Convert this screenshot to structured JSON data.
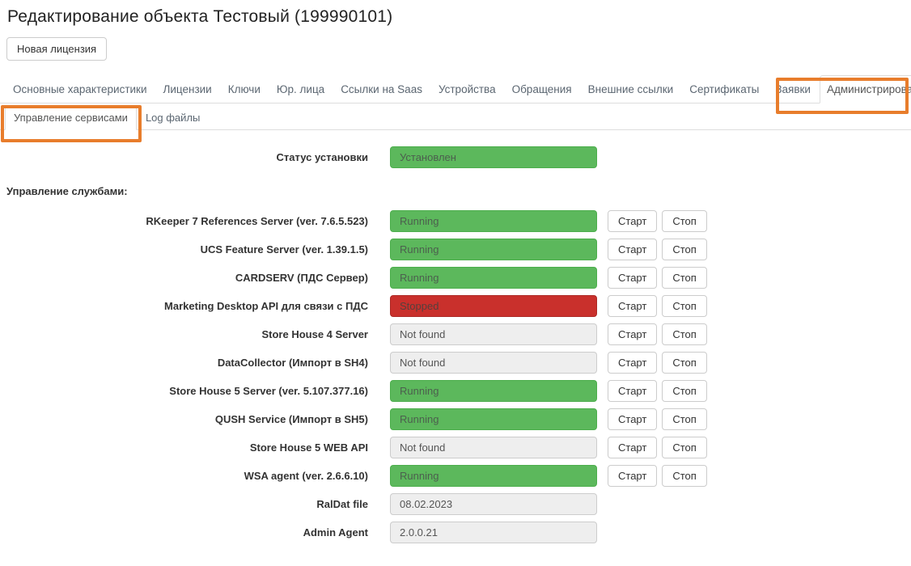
{
  "header": {
    "title": "Редактирование объекта  Тестовый (199990101)",
    "new_license_button": "Новая лицензия"
  },
  "tabs": [
    {
      "label": "Основные характеристики",
      "active": false
    },
    {
      "label": "Лицензии",
      "active": false
    },
    {
      "label": "Ключи",
      "active": false
    },
    {
      "label": "Юр. лица",
      "active": false
    },
    {
      "label": "Ссылки на Saas",
      "active": false
    },
    {
      "label": "Устройства",
      "active": false
    },
    {
      "label": "Обращения",
      "active": false
    },
    {
      "label": "Внешние ссылки",
      "active": false
    },
    {
      "label": "Сертификаты",
      "active": false
    },
    {
      "label": "Заявки",
      "active": false
    },
    {
      "label": "Администрирование",
      "active": true,
      "highlighted": true
    }
  ],
  "subtabs": [
    {
      "label": "Управление сервисами",
      "active": true,
      "highlighted": true
    },
    {
      "label": "Log файлы",
      "active": false
    }
  ],
  "form": {
    "install_status": {
      "label": "Статус установки",
      "value": "Установлен",
      "kind": "running"
    },
    "services_heading": "Управление службами:",
    "start_button": "Старт",
    "stop_button": "Стоп",
    "services": [
      {
        "label": "RKeeper 7 References Server (ver. 7.6.5.523)",
        "value": "Running",
        "kind": "running",
        "has_buttons": true
      },
      {
        "label": "UCS Feature Server (ver. 1.39.1.5)",
        "value": "Running",
        "kind": "running",
        "has_buttons": true
      },
      {
        "label": "CARDSERV (ПДС Сервер)",
        "value": "Running",
        "kind": "running",
        "has_buttons": true
      },
      {
        "label": "Marketing Desktop API для связи с ПДС",
        "value": "Stopped",
        "kind": "stopped",
        "has_buttons": true
      },
      {
        "label": "Store House 4 Server",
        "value": "Not found",
        "kind": "notfound",
        "has_buttons": true
      },
      {
        "label": "DataCollector (Импорт в SH4)",
        "value": "Not found",
        "kind": "notfound",
        "has_buttons": true
      },
      {
        "label": "Store House 5 Server (ver. 5.107.377.16)",
        "value": "Running",
        "kind": "running",
        "has_buttons": true
      },
      {
        "label": "QUSH Service (Импорт в SH5)",
        "value": "Running",
        "kind": "running",
        "has_buttons": true
      },
      {
        "label": "Store House 5 WEB API",
        "value": "Not found",
        "kind": "notfound",
        "has_buttons": true
      },
      {
        "label": "WSA agent (ver. 2.6.6.10)",
        "value": "Running",
        "kind": "running",
        "has_buttons": true
      },
      {
        "label": "RalDat file",
        "value": "08.02.2023",
        "kind": "info",
        "has_buttons": false
      },
      {
        "label": "Admin Agent",
        "value": "2.0.0.21",
        "kind": "info",
        "has_buttons": false
      }
    ]
  },
  "colors": {
    "success_green": "#5cb85c",
    "danger_red": "#c9302c",
    "neutral_gray": "#eeeeee",
    "highlight_orange": "#e87d2c",
    "border_gray": "#dddddd"
  }
}
